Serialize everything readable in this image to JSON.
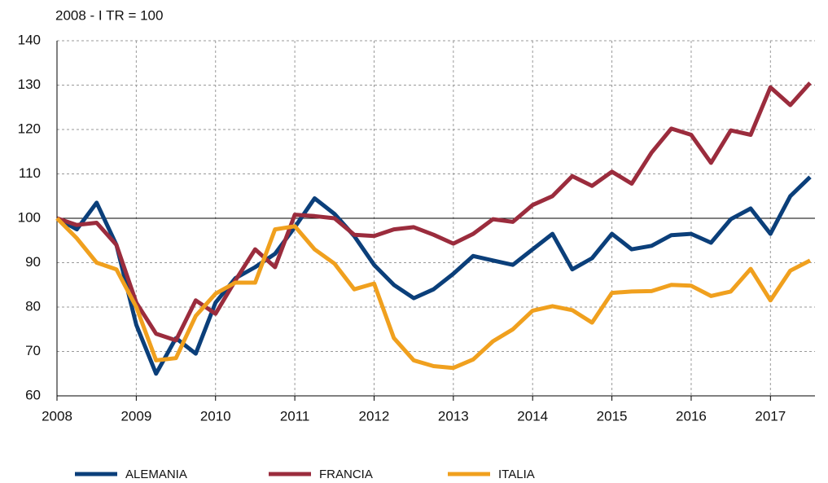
{
  "chart_data": {
    "type": "line",
    "y_label": "2008 - I TR = 100",
    "categories": [
      "2008",
      null,
      null,
      null,
      "2009",
      null,
      null,
      null,
      "2010",
      null,
      null,
      null,
      "2011",
      null,
      null,
      null,
      "2012",
      null,
      null,
      null,
      "2013",
      null,
      null,
      null,
      "2014",
      null,
      null,
      null,
      "2015",
      null,
      null,
      null,
      "2016",
      null,
      null,
      null,
      "2017",
      null,
      null
    ],
    "series": [
      {
        "name": "ALEMANIA",
        "color": "#0b3f7a",
        "values": [
          100,
          97.5,
          103.5,
          94,
          76,
          65,
          73,
          69.5,
          81,
          86.5,
          89,
          92,
          98,
          104.5,
          101,
          96,
          89.5,
          85,
          82,
          84,
          87.5,
          91.5,
          90.5,
          89.5,
          93,
          96.5,
          88.5,
          91,
          96.5,
          93,
          93.8,
          96.2,
          96.5,
          94.5,
          99.8,
          102.2,
          96.5,
          105,
          109.3
        ]
      },
      {
        "name": "FRANCIA",
        "color": "#9b2c3d",
        "values": [
          100,
          98.5,
          99,
          94,
          81,
          74,
          72.5,
          81.5,
          78.5,
          86,
          93,
          89,
          100.8,
          100.5,
          100,
          96.3,
          96,
          97.5,
          98,
          96.3,
          94.3,
          96.5,
          99.8,
          99.2,
          103,
          105,
          109.5,
          107.3,
          110.5,
          107.8,
          114.8,
          120.2,
          118.8,
          112.5,
          119.8,
          118.8,
          129.5,
          125.5,
          130.5
        ]
      },
      {
        "name": "ITALIA",
        "color": "#f0a01e",
        "values": [
          100,
          95.5,
          90,
          88.5,
          80,
          68,
          68.5,
          78,
          83,
          85.5,
          85.5,
          97.5,
          98.2,
          93,
          89.8,
          84,
          85.3,
          73,
          68,
          66.7,
          66.3,
          68.2,
          72.3,
          75,
          79.2,
          80.2,
          79.3,
          76.5,
          83.2,
          83.5,
          83.6,
          85,
          84.8,
          82.5,
          83.5,
          88.6,
          81.5,
          88.2,
          90.5
        ]
      }
    ],
    "reference_line": 100,
    "ylim": [
      60,
      140
    ],
    "yticks": [
      60,
      70,
      80,
      90,
      100,
      110,
      120,
      130,
      140
    ],
    "grid": true,
    "legend": "bottom"
  }
}
